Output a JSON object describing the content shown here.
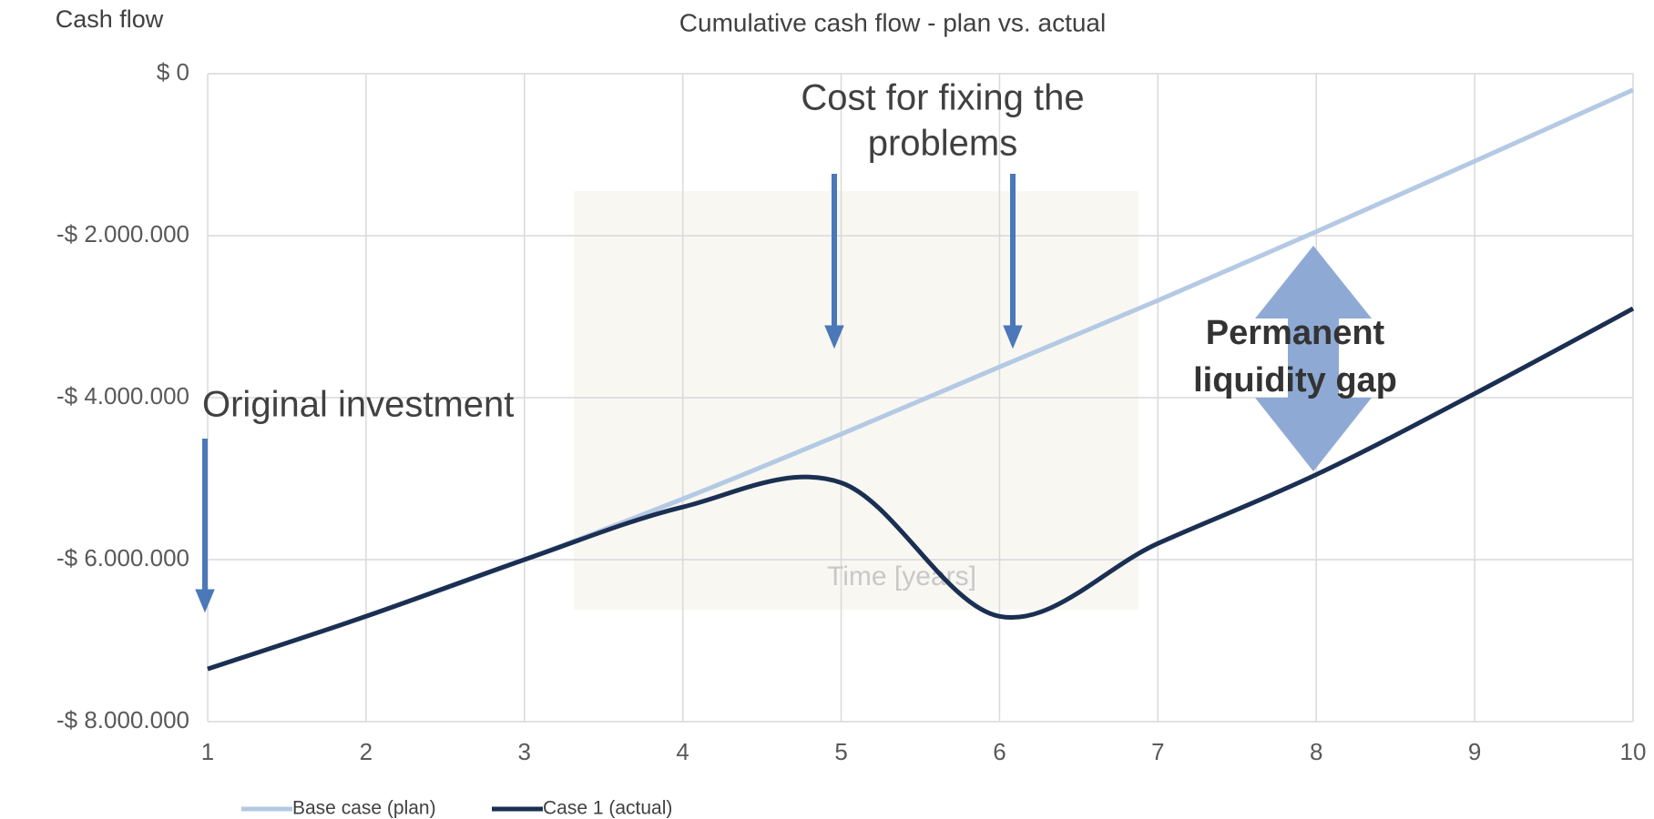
{
  "chart_data": {
    "type": "line",
    "title": "Cumulative cash flow - plan vs. actual",
    "y_label": "Cash flow",
    "x_label": "Time [years]",
    "x": [
      1,
      2,
      3,
      4,
      5,
      6,
      7,
      8,
      9,
      10
    ],
    "series": [
      {
        "name": "Base case (plan)",
        "color": "#b4c9e3",
        "values": [
          -7350000,
          -6700000,
          -6000000,
          -5250000,
          -4450000,
          -3620000,
          -2800000,
          -1950000,
          -1080000,
          -200000
        ]
      },
      {
        "name": "Case 1 (actual)",
        "color": "#1a2f52",
        "values": [
          -7350000,
          -6700000,
          -6000000,
          -5350000,
          -5050000,
          -6700000,
          -5800000,
          -4950000,
          -3950000,
          -2900000
        ]
      }
    ],
    "xlim": [
      1,
      10
    ],
    "xticks": [
      1,
      2,
      3,
      4,
      5,
      6,
      7,
      8,
      9,
      10
    ],
    "ylim": [
      -8000000,
      0
    ],
    "yticks": [
      {
        "value": 0,
        "label": "$ 0"
      },
      {
        "value": -2000000,
        "label": "-$ 2.000.000"
      },
      {
        "value": -4000000,
        "label": "-$ 4.000.000"
      },
      {
        "value": -6000000,
        "label": "-$ 6.000.000"
      },
      {
        "value": -8000000,
        "label": "-$ 8.000.000"
      }
    ],
    "grid": true,
    "legend": "bottom-left",
    "annotations": [
      [
        "Cost for fixing the",
        "problems"
      ],
      [
        "Original investment"
      ],
      [
        "Permanent",
        "liquidity gap"
      ]
    ]
  }
}
